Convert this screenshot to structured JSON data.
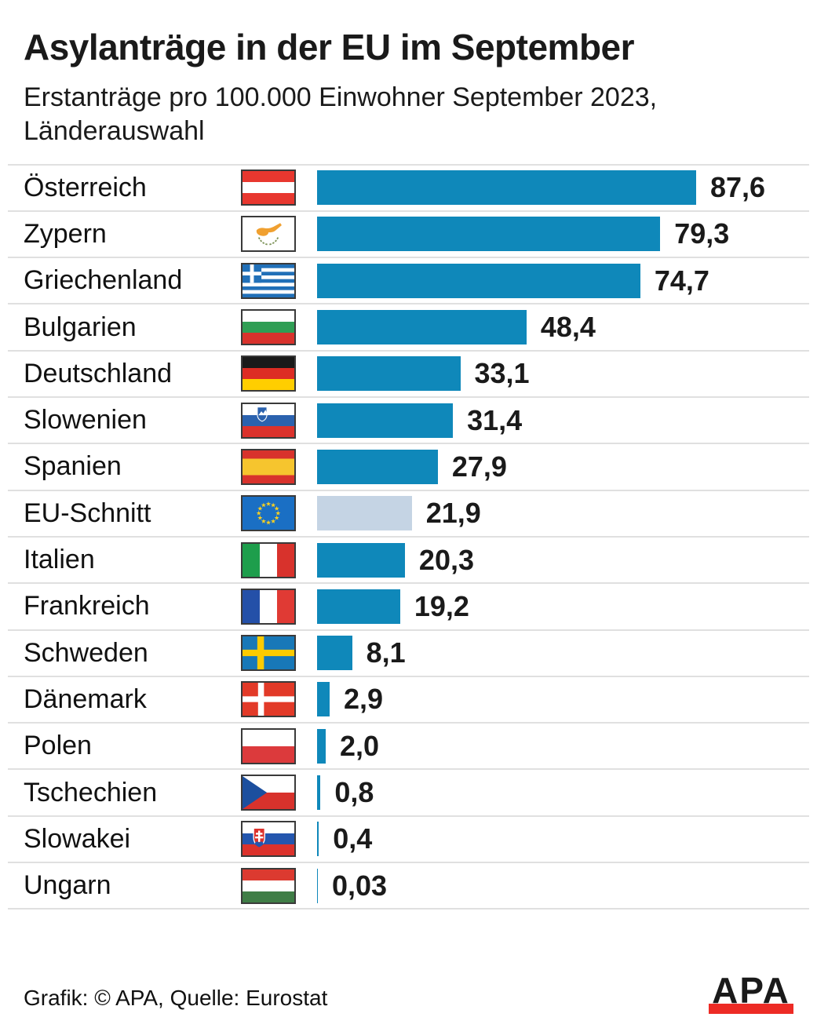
{
  "header": {
    "title": "Asylanträge in der EU im September",
    "subtitle": "Erstanträge pro 100.000 Einwohner September 2023,\nLänderauswahl"
  },
  "colors": {
    "bar": "#0f88ba",
    "bar_muted": "#c5d4e4",
    "separator": "#e0e0e0",
    "apa_red": "#ed2b25"
  },
  "chart_data": {
    "type": "bar",
    "orientation": "horizontal",
    "title": "Asylanträge in der EU im September",
    "subtitle": "Erstanträge pro 100.000 Einwohner September 2023, Länderauswahl",
    "unit": "Erstanträge pro 100.000 Einwohner",
    "period": "September 2023",
    "xlim": [
      0,
      90
    ],
    "max_value": 87.6,
    "grid": false,
    "legend": false,
    "categories": [
      "Österreich",
      "Zypern",
      "Griechenland",
      "Bulgarien",
      "Deutschland",
      "Slowenien",
      "Spanien",
      "EU-Schnitt",
      "Italien",
      "Frankreich",
      "Schweden",
      "Dänemark",
      "Polen",
      "Tschechien",
      "Slowakei",
      "Ungarn"
    ],
    "values": [
      87.6,
      79.3,
      74.7,
      48.4,
      33.1,
      31.4,
      27.9,
      21.9,
      20.3,
      19.2,
      8.1,
      2.9,
      2.0,
      0.8,
      0.4,
      0.03
    ],
    "value_labels": [
      "87,6",
      "79,3",
      "74,7",
      "48,4",
      "33,1",
      "31,4",
      "27,9",
      "21,9",
      "20,3",
      "19,2",
      "8,1",
      "2,9",
      "2,0",
      "0,8",
      "0,4",
      "0,03"
    ],
    "flag_icons": [
      "austria-flag-icon",
      "cyprus-flag-icon",
      "greece-flag-icon",
      "bulgaria-flag-icon",
      "germany-flag-icon",
      "slovenia-flag-icon",
      "spain-flag-icon",
      "eu-flag-icon",
      "italy-flag-icon",
      "france-flag-icon",
      "sweden-flag-icon",
      "denmark-flag-icon",
      "poland-flag-icon",
      "czech-republic-flag-icon",
      "slovakia-flag-icon",
      "hungary-flag-icon"
    ],
    "muted_index": 7
  },
  "footer": {
    "credit": "Grafik: © APA, Quelle: Eurostat",
    "logo_text": "APA"
  }
}
